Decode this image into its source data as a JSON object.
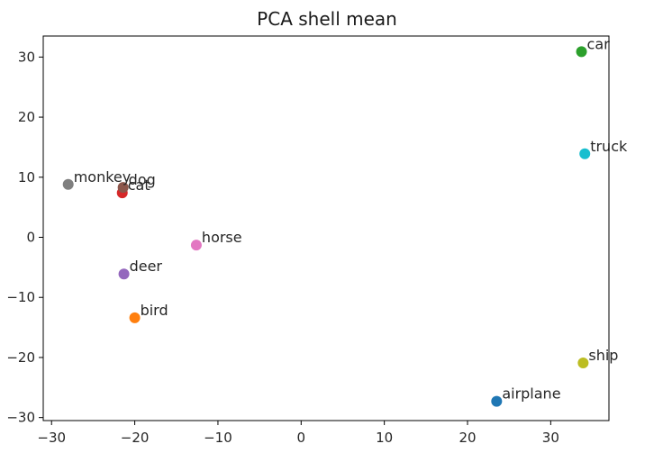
{
  "chart_data": {
    "type": "scatter",
    "title": "PCA shell mean",
    "xlabel": "",
    "ylabel": "",
    "xlim": [
      -31,
      37
    ],
    "ylim": [
      -30.5,
      33.5
    ],
    "xticks": [
      -30,
      -20,
      -10,
      0,
      10,
      20,
      30
    ],
    "yticks": [
      -30,
      -20,
      -10,
      0,
      10,
      20,
      30
    ],
    "tick_labels_x": [
      "−30",
      "−20",
      "−10",
      "0",
      "10",
      "20",
      "30"
    ],
    "tick_labels_y": [
      "−30",
      "−20",
      "−10",
      "0",
      "10",
      "20",
      "30"
    ],
    "grid": false,
    "legend": "none",
    "points": [
      {
        "label": "airplane",
        "x": 23.5,
        "y": -27.3,
        "color": "#1f77b4"
      },
      {
        "label": "bird",
        "x": -20.0,
        "y": -13.4,
        "color": "#ff7f0e"
      },
      {
        "label": "car",
        "x": 33.7,
        "y": 30.9,
        "color": "#2ca02c"
      },
      {
        "label": "cat",
        "x": -21.5,
        "y": 7.4,
        "color": "#d62728"
      },
      {
        "label": "deer",
        "x": -21.3,
        "y": -6.1,
        "color": "#9467bd"
      },
      {
        "label": "dog",
        "x": -21.4,
        "y": 8.3,
        "color": "#8c564b"
      },
      {
        "label": "horse",
        "x": -12.6,
        "y": -1.3,
        "color": "#e377c2"
      },
      {
        "label": "monkey",
        "x": -28.0,
        "y": 8.8,
        "color": "#7f7f7f"
      },
      {
        "label": "ship",
        "x": 33.9,
        "y": -20.9,
        "color": "#bcbd22"
      },
      {
        "label": "truck",
        "x": 34.1,
        "y": 13.9,
        "color": "#17becf"
      }
    ]
  }
}
